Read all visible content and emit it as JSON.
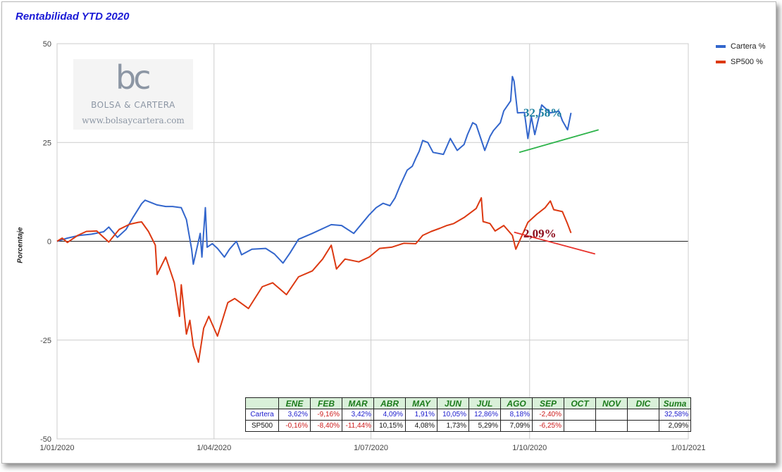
{
  "title": "Rentabilidad YTD 2020",
  "ylabel": "Porcentaje",
  "legend": [
    {
      "label": "Cartera %",
      "color": "#3366cc"
    },
    {
      "label": "SP500 %",
      "color": "#dc3912"
    }
  ],
  "logo": {
    "mark": "bc",
    "name": "BOLSA & CARTERA",
    "url": "www.bolsaycartera.com"
  },
  "annotations": [
    {
      "text": "32,58%",
      "color": "#1a7fa0",
      "x": "2020-09-20",
      "y": 32.58
    },
    {
      "text": "2,09%",
      "color": "#8b0a1a",
      "x": "2020-09-20",
      "y": 2.09
    }
  ],
  "chart_data": {
    "type": "line",
    "title": "Rentabilidad YTD 2020",
    "xlabel": "",
    "ylabel": "Porcentaje",
    "x_ticks": [
      "1/01/2020",
      "1/04/2020",
      "1/07/2020",
      "1/10/2020",
      "1/01/2021"
    ],
    "y_ticks": [
      50,
      25,
      0,
      -25,
      -50
    ],
    "xlim": [
      "2020-01-01",
      "2021-01-01"
    ],
    "ylim": [
      -50,
      50
    ],
    "grid": true,
    "legend_position": "top-right",
    "series": [
      {
        "name": "Cartera %",
        "color": "#3366cc",
        "points": [
          [
            "2020-01-01",
            0
          ],
          [
            "2020-01-07",
            0.8
          ],
          [
            "2020-01-14",
            1.5
          ],
          [
            "2020-01-21",
            1.8
          ],
          [
            "2020-01-28",
            2.4
          ],
          [
            "2020-01-31",
            3.6
          ],
          [
            "2020-02-05",
            1.0
          ],
          [
            "2020-02-10",
            3.0
          ],
          [
            "2020-02-14",
            6.0
          ],
          [
            "2020-02-19",
            9.5
          ],
          [
            "2020-02-21",
            10.4
          ],
          [
            "2020-02-28",
            9.2
          ],
          [
            "2020-03-04",
            8.8
          ],
          [
            "2020-03-08",
            8.8
          ],
          [
            "2020-03-13",
            8.5
          ],
          [
            "2020-03-16",
            5.5
          ],
          [
            "2020-03-19",
            -2.0
          ],
          [
            "2020-03-20",
            -5.8
          ],
          [
            "2020-03-24",
            2.0
          ],
          [
            "2020-03-25",
            -4.0
          ],
          [
            "2020-03-27",
            8.5
          ],
          [
            "2020-03-28",
            -1.5
          ],
          [
            "2020-03-31",
            -0.6
          ],
          [
            "2020-04-03",
            -1.8
          ],
          [
            "2020-04-07",
            -4.0
          ],
          [
            "2020-04-10",
            -2.0
          ],
          [
            "2020-04-14",
            0.0
          ],
          [
            "2020-04-17",
            -3.4
          ],
          [
            "2020-04-23",
            -2.0
          ],
          [
            "2020-05-01",
            -1.8
          ],
          [
            "2020-05-06",
            -3.2
          ],
          [
            "2020-05-11",
            -5.5
          ],
          [
            "2020-05-15",
            -3.0
          ],
          [
            "2020-05-20",
            0.5
          ],
          [
            "2020-05-28",
            2.0
          ],
          [
            "2020-06-08",
            4.2
          ],
          [
            "2020-06-14",
            4.0
          ],
          [
            "2020-06-21",
            2.0
          ],
          [
            "2020-06-26",
            4.6
          ],
          [
            "2020-06-30",
            6.7
          ],
          [
            "2020-07-04",
            8.5
          ],
          [
            "2020-07-08",
            9.6
          ],
          [
            "2020-07-12",
            9.0
          ],
          [
            "2020-07-15",
            11.0
          ],
          [
            "2020-07-18",
            14.2
          ],
          [
            "2020-07-22",
            18.0
          ],
          [
            "2020-07-25",
            19.0
          ],
          [
            "2020-07-27",
            21.0
          ],
          [
            "2020-07-29",
            22.8
          ],
          [
            "2020-07-31",
            25.5
          ],
          [
            "2020-08-03",
            25.0
          ],
          [
            "2020-08-06",
            22.5
          ],
          [
            "2020-08-12",
            22.0
          ],
          [
            "2020-08-16",
            26.0
          ],
          [
            "2020-08-20",
            23.0
          ],
          [
            "2020-08-24",
            24.5
          ],
          [
            "2020-08-26",
            27.0
          ],
          [
            "2020-08-29",
            30.0
          ],
          [
            "2020-08-31",
            29.5
          ],
          [
            "2020-09-05",
            23.0
          ],
          [
            "2020-09-08",
            26.5
          ],
          [
            "2020-09-10",
            28.0
          ],
          [
            "2020-09-14",
            30.0
          ],
          [
            "2020-09-16",
            33.0
          ],
          [
            "2020-09-20",
            35.5
          ],
          [
            "2020-09-21",
            41.7
          ],
          [
            "2020-09-22",
            40.5
          ],
          [
            "2020-09-24",
            32.5
          ],
          [
            "2020-09-28",
            32.6
          ],
          [
            "2020-09-30",
            26.0
          ],
          [
            "2020-10-02",
            31.5
          ],
          [
            "2020-10-04",
            27.0
          ],
          [
            "2020-10-08",
            34.5
          ],
          [
            "2020-10-13",
            32.5
          ],
          [
            "2020-10-18",
            32.9
          ],
          [
            "2020-10-20",
            30.5
          ],
          [
            "2020-10-23",
            28.2
          ],
          [
            "2020-10-25",
            32.5
          ]
        ]
      },
      {
        "name": "SP500 %",
        "color": "#dc3912",
        "points": [
          [
            "2020-01-01",
            0
          ],
          [
            "2020-01-04",
            0.8
          ],
          [
            "2020-01-07",
            -0.3
          ],
          [
            "2020-01-13",
            1.5
          ],
          [
            "2020-01-18",
            2.5
          ],
          [
            "2020-01-24",
            2.6
          ],
          [
            "2020-01-31",
            -0.2
          ],
          [
            "2020-02-06",
            3.0
          ],
          [
            "2020-02-12",
            4.3
          ],
          [
            "2020-02-17",
            4.8
          ],
          [
            "2020-02-19",
            4.9
          ],
          [
            "2020-02-23",
            2.5
          ],
          [
            "2020-02-27",
            -1.0
          ],
          [
            "2020-02-28",
            -8.4
          ],
          [
            "2020-03-04",
            -4.0
          ],
          [
            "2020-03-09",
            -10.5
          ],
          [
            "2020-03-12",
            -19.0
          ],
          [
            "2020-03-13",
            -11.0
          ],
          [
            "2020-03-16",
            -23.5
          ],
          [
            "2020-03-18",
            -20.0
          ],
          [
            "2020-03-20",
            -26.5
          ],
          [
            "2020-03-23",
            -30.6
          ],
          [
            "2020-03-26",
            -22.0
          ],
          [
            "2020-03-29",
            -19.0
          ],
          [
            "2020-04-03",
            -24.0
          ],
          [
            "2020-04-09",
            -15.5
          ],
          [
            "2020-04-13",
            -14.5
          ],
          [
            "2020-04-21",
            -17.0
          ],
          [
            "2020-04-29",
            -11.5
          ],
          [
            "2020-05-05",
            -10.5
          ],
          [
            "2020-05-13",
            -13.5
          ],
          [
            "2020-05-20",
            -9.0
          ],
          [
            "2020-05-28",
            -7.5
          ],
          [
            "2020-06-03",
            -4.5
          ],
          [
            "2020-06-08",
            -1.0
          ],
          [
            "2020-06-11",
            -7.0
          ],
          [
            "2020-06-16",
            -4.5
          ],
          [
            "2020-06-24",
            -5.2
          ],
          [
            "2020-06-30",
            -4.0
          ],
          [
            "2020-07-06",
            -1.8
          ],
          [
            "2020-07-13",
            -1.5
          ],
          [
            "2020-07-20",
            -0.5
          ],
          [
            "2020-07-27",
            -0.6
          ],
          [
            "2020-07-31",
            1.5
          ],
          [
            "2020-08-05",
            2.5
          ],
          [
            "2020-08-10",
            3.3
          ],
          [
            "2020-08-14",
            4.0
          ],
          [
            "2020-08-18",
            4.5
          ],
          [
            "2020-08-24",
            6.0
          ],
          [
            "2020-08-31",
            8.3
          ],
          [
            "2020-09-03",
            11.0
          ],
          [
            "2020-09-04",
            5.0
          ],
          [
            "2020-09-08",
            4.5
          ],
          [
            "2020-09-11",
            2.6
          ],
          [
            "2020-09-16",
            4.0
          ],
          [
            "2020-09-21",
            1.5
          ],
          [
            "2020-09-23",
            -2.0
          ],
          [
            "2020-09-30",
            4.8
          ],
          [
            "2020-10-05",
            6.8
          ],
          [
            "2020-10-10",
            8.5
          ],
          [
            "2020-10-13",
            10.2
          ],
          [
            "2020-10-15",
            8.0
          ],
          [
            "2020-10-20",
            7.5
          ],
          [
            "2020-10-23",
            4.4
          ],
          [
            "2020-10-25",
            2.1
          ]
        ]
      }
    ],
    "trend_lines": [
      {
        "color": "#2db34a",
        "from": [
          "2020-09-25",
          22.5
        ],
        "to": [
          "2020-11-10",
          28.2
        ]
      },
      {
        "color": "#e8302a",
        "from": [
          "2020-09-22",
          2.3
        ],
        "to": [
          "2020-11-08",
          -3.2
        ]
      }
    ]
  },
  "table": {
    "headers": [
      "",
      "ENE",
      "FEB",
      "MAR",
      "ABR",
      "MAY",
      "JUN",
      "JUL",
      "AGO",
      "SEP",
      "OCT",
      "NOV",
      "DIC",
      "Suma"
    ],
    "rows": [
      {
        "label": "Cartera",
        "cells": [
          "3,62%",
          "-9,16%",
          "3,42%",
          "4,09%",
          "1,91%",
          "10,05%",
          "12,86%",
          "8,18%",
          "-2,40%",
          "",
          "",
          "",
          "32,58%"
        ]
      },
      {
        "label": "SP500",
        "cells": [
          "-0,16%",
          "-8,40%",
          "-11,44%",
          "10,15%",
          "4,08%",
          "1,73%",
          "5,29%",
          "7,09%",
          "-6,25%",
          "",
          "",
          "",
          "2,09%"
        ]
      }
    ]
  }
}
